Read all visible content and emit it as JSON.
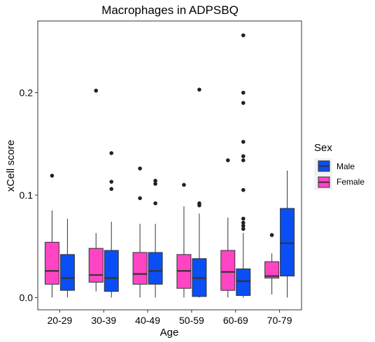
{
  "chart_data": {
    "type": "boxplot",
    "title": "Macrophages in ADPSBQ",
    "xlabel": "Age",
    "ylabel": "xCell score",
    "ylim": [
      -0.012,
      0.27
    ],
    "yticks": [
      0.0,
      0.1,
      0.2
    ],
    "ytick_labels": [
      "0.0",
      "0.1",
      "0.2"
    ],
    "grid": false,
    "legend_position": "right",
    "legend": {
      "title": "Sex",
      "entries": [
        {
          "name": "Male",
          "color": "#0a4ff5"
        },
        {
          "name": "Female",
          "color": "#ff44c4"
        }
      ]
    },
    "categories": [
      "20-29",
      "30-39",
      "40-49",
      "50-59",
      "60-69",
      "70-79"
    ],
    "series": [
      {
        "name": "Female",
        "color": "#ff44c4",
        "boxes": [
          {
            "min": 0.0,
            "q1": 0.013,
            "median": 0.026,
            "q3": 0.054,
            "max": 0.085,
            "outliers": [
              0.119
            ]
          },
          {
            "min": 0.006,
            "q1": 0.015,
            "median": 0.022,
            "q3": 0.048,
            "max": 0.063,
            "outliers": [
              0.202
            ]
          },
          {
            "min": 0.0,
            "q1": 0.013,
            "median": 0.023,
            "q3": 0.044,
            "max": 0.072,
            "outliers": [
              0.097,
              0.126
            ]
          },
          {
            "min": 0.0,
            "q1": 0.009,
            "median": 0.026,
            "q3": 0.042,
            "max": 0.089,
            "outliers": [
              0.11
            ]
          },
          {
            "min": 0.0,
            "q1": 0.007,
            "median": 0.025,
            "q3": 0.046,
            "max": 0.078,
            "outliers": [
              0.134
            ]
          },
          {
            "min": 0.003,
            "q1": 0.019,
            "median": 0.021,
            "q3": 0.035,
            "max": 0.043,
            "outliers": [
              0.061
            ]
          }
        ]
      },
      {
        "name": "Male",
        "color": "#0a4ff5",
        "boxes": [
          {
            "min": 0.0,
            "q1": 0.007,
            "median": 0.019,
            "q3": 0.042,
            "max": 0.077,
            "outliers": []
          },
          {
            "min": 0.0,
            "q1": 0.006,
            "median": 0.019,
            "q3": 0.046,
            "max": 0.074,
            "outliers": [
              0.106,
              0.113,
              0.141
            ]
          },
          {
            "min": 0.0,
            "q1": 0.013,
            "median": 0.026,
            "q3": 0.044,
            "max": 0.072,
            "outliers": [
              0.092,
              0.111,
              0.114
            ]
          },
          {
            "min": 0.0,
            "q1": 0.001,
            "median": 0.019,
            "q3": 0.038,
            "max": 0.082,
            "outliers": [
              0.09,
              0.092,
              0.203
            ]
          },
          {
            "min": 0.0,
            "q1": 0.002,
            "median": 0.016,
            "q3": 0.028,
            "max": 0.063,
            "outliers": [
              0.067,
              0.07,
              0.073,
              0.077,
              0.105,
              0.134,
              0.138,
              0.152,
              0.19,
              0.2,
              0.256
            ]
          },
          {
            "min": 0.0,
            "q1": 0.021,
            "median": 0.053,
            "q3": 0.087,
            "max": 0.124,
            "outliers": []
          }
        ]
      }
    ]
  }
}
